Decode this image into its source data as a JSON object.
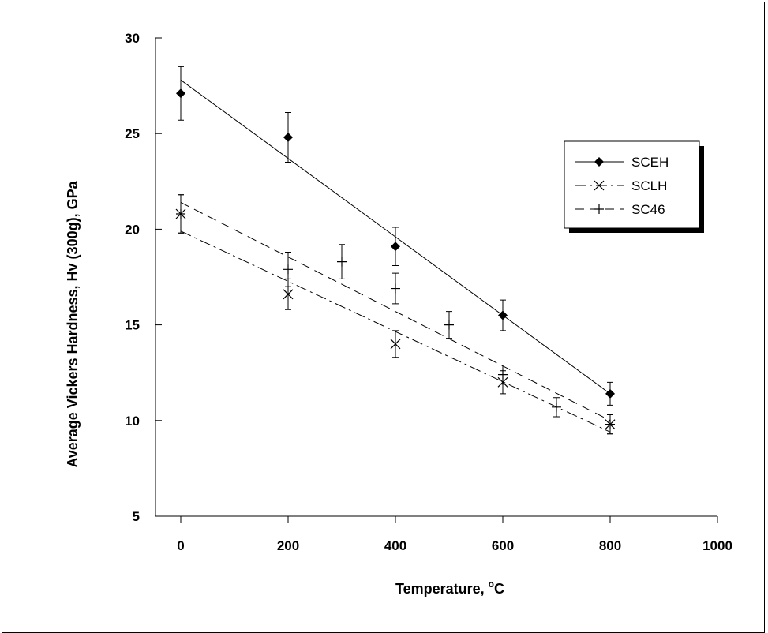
{
  "chart_data": {
    "type": "scatter",
    "title": "",
    "xlabel": "Temperature, ",
    "xlabel_sup": "o",
    "xlabel_suffix": "C",
    "ylabel": "Average Vickers Hardness, Hv (300g), GPa",
    "xlim": [
      0,
      1000
    ],
    "ylim": [
      5,
      30
    ],
    "x_ticks": [
      0,
      200,
      400,
      600,
      800,
      1000
    ],
    "y_ticks": [
      5,
      10,
      15,
      20,
      25,
      30
    ],
    "grid": false,
    "legend_position": "top-right",
    "series": [
      {
        "name": "SCEH",
        "marker": "diamond",
        "line_style": "solid",
        "x": [
          0,
          200,
          400,
          600,
          800
        ],
        "y": [
          27.1,
          24.8,
          19.1,
          15.5,
          11.4
        ],
        "err": [
          1.4,
          1.3,
          1.0,
          0.8,
          0.6
        ],
        "fit": [
          [
            0,
            27.8
          ],
          [
            800,
            11.4
          ]
        ]
      },
      {
        "name": "SCLH",
        "marker": "x",
        "line_style": "dashdot",
        "x": [
          0,
          200,
          400,
          600,
          800
        ],
        "y": [
          20.8,
          16.6,
          14.0,
          12.0,
          9.8
        ],
        "err": [
          1.0,
          0.8,
          0.7,
          0.6,
          0.5
        ],
        "fit": [
          [
            0,
            19.9
          ],
          [
            800,
            9.4
          ]
        ]
      },
      {
        "name": "SC46",
        "marker": "plus",
        "line_style": "dashed",
        "x": [
          0,
          200,
          300,
          400,
          500,
          600,
          700,
          800
        ],
        "y": [
          20.8,
          17.9,
          18.3,
          16.9,
          15.0,
          12.4,
          10.7,
          9.8
        ],
        "err": [
          1.0,
          0.9,
          0.9,
          0.8,
          0.7,
          0.5,
          0.5,
          0.5
        ],
        "fit": [
          [
            0,
            21.4
          ],
          [
            800,
            10.0
          ]
        ]
      }
    ]
  },
  "colors": {
    "ink": "#000000",
    "background": "#ffffff"
  }
}
